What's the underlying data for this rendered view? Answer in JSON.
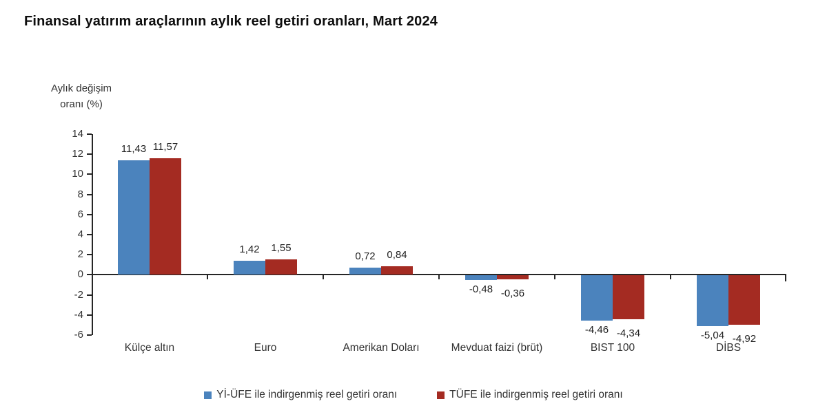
{
  "title": "Finansal yatırım araçlarının aylık reel getiri oranları, Mart 2024",
  "y_axis": {
    "line1": "Aylık değişim",
    "line2": "oranı (%)"
  },
  "colors": {
    "series1": "#4B83BD",
    "series2": "#A42B22",
    "axis": "#262626",
    "text": "#333333"
  },
  "chart_data": {
    "type": "bar",
    "title": "Finansal yatırım araçlarının aylık reel getiri oranları, Mart 2024",
    "ylabel": "Aylık değişim oranı (%)",
    "xlabel": "",
    "categories": [
      "Külçe altın",
      "Euro",
      "Amerikan Doları",
      "Mevduat faizi (brüt)",
      "BIST 100",
      "DİBS"
    ],
    "series": [
      {
        "name": "Yİ-ÜFE ile indirgenmiş reel getiri oranı",
        "color": "#4B83BD",
        "values": [
          11.43,
          1.42,
          0.72,
          -0.48,
          -4.46,
          -5.04
        ]
      },
      {
        "name": "TÜFE ile indirgenmiş reel getiri oranı",
        "color": "#A42B22",
        "values": [
          11.57,
          1.55,
          0.84,
          -0.36,
          -4.34,
          -4.92
        ]
      }
    ],
    "ylim": [
      -6,
      14
    ],
    "ytick_step": 2,
    "ytick_labels": [
      "14",
      "12",
      "10",
      "8",
      "6",
      "4",
      "2",
      "0",
      "-2",
      "-4",
      "-6"
    ],
    "decimal_separator": ",",
    "grid": false,
    "legend_position": "bottom"
  }
}
